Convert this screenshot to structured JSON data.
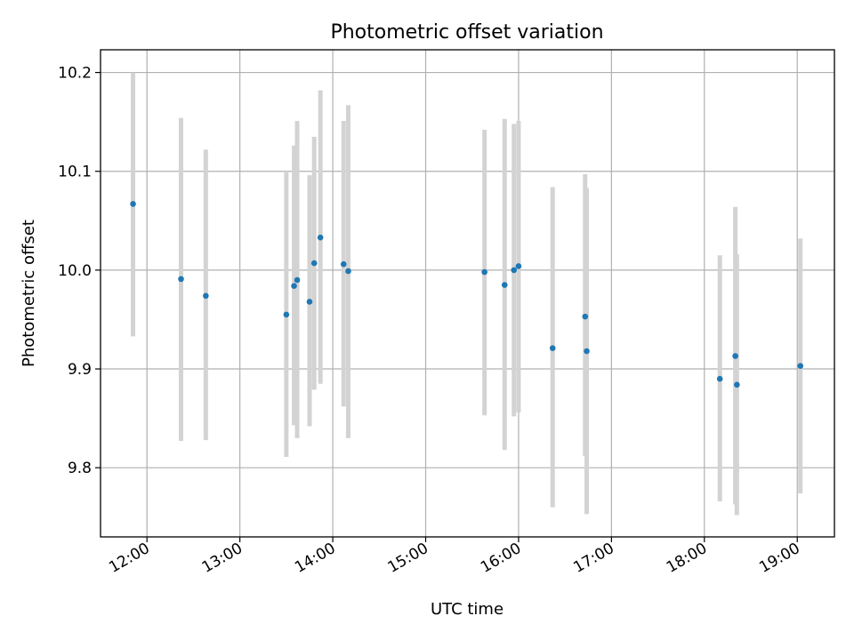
{
  "chart_data": {
    "type": "scatter",
    "title": "Photometric offset variation",
    "xlabel": "UTC time",
    "ylabel": "Photometric offset",
    "grid": true,
    "colors": {
      "points": "#1f77b4",
      "errorbars": "#d3d3d3"
    },
    "xlim": [
      "11:30",
      "19:24"
    ],
    "ylim": [
      9.73,
      10.223
    ],
    "x_ticks": [
      "12:00",
      "13:00",
      "14:00",
      "15:00",
      "16:00",
      "17:00",
      "18:00",
      "19:00"
    ],
    "y_ticks": [
      "9.8",
      "9.9",
      "10.0",
      "10.1",
      "10.2"
    ],
    "points": [
      {
        "x": "11:51",
        "y": 10.067,
        "err_low": 9.933,
        "err_high": 10.2
      },
      {
        "x": "12:22",
        "y": 9.991,
        "err_low": 9.827,
        "err_high": 10.154
      },
      {
        "x": "12:38",
        "y": 9.974,
        "err_low": 9.828,
        "err_high": 10.122
      },
      {
        "x": "13:30",
        "y": 9.955,
        "err_low": 9.811,
        "err_high": 10.099
      },
      {
        "x": "13:35",
        "y": 9.984,
        "err_low": 9.843,
        "err_high": 10.126
      },
      {
        "x": "13:37",
        "y": 9.99,
        "err_low": 9.83,
        "err_high": 10.151
      },
      {
        "x": "13:45",
        "y": 9.968,
        "err_low": 9.842,
        "err_high": 10.096
      },
      {
        "x": "13:48",
        "y": 10.007,
        "err_low": 9.879,
        "err_high": 10.135
      },
      {
        "x": "13:52",
        "y": 10.033,
        "err_low": 9.885,
        "err_high": 10.182
      },
      {
        "x": "14:07",
        "y": 10.006,
        "err_low": 9.862,
        "err_high": 10.151
      },
      {
        "x": "14:10",
        "y": 9.999,
        "err_low": 9.83,
        "err_high": 10.167
      },
      {
        "x": "15:38",
        "y": 9.998,
        "err_low": 9.853,
        "err_high": 10.142
      },
      {
        "x": "15:51",
        "y": 9.985,
        "err_low": 9.818,
        "err_high": 10.153
      },
      {
        "x": "15:57",
        "y": 10.0,
        "err_low": 9.852,
        "err_high": 10.148
      },
      {
        "x": "16:00",
        "y": 10.004,
        "err_low": 9.856,
        "err_high": 10.151
      },
      {
        "x": "16:22",
        "y": 9.921,
        "err_low": 9.76,
        "err_high": 10.084
      },
      {
        "x": "16:43",
        "y": 9.953,
        "err_low": 9.812,
        "err_high": 10.097
      },
      {
        "x": "16:44",
        "y": 9.918,
        "err_low": 9.753,
        "err_high": 10.083
      },
      {
        "x": "18:10",
        "y": 9.89,
        "err_low": 9.766,
        "err_high": 10.015
      },
      {
        "x": "18:20",
        "y": 9.913,
        "err_low": 9.763,
        "err_high": 10.064
      },
      {
        "x": "18:21",
        "y": 9.884,
        "err_low": 9.752,
        "err_high": 10.016
      },
      {
        "x": "19:02",
        "y": 9.903,
        "err_low": 9.774,
        "err_high": 10.032
      }
    ]
  }
}
